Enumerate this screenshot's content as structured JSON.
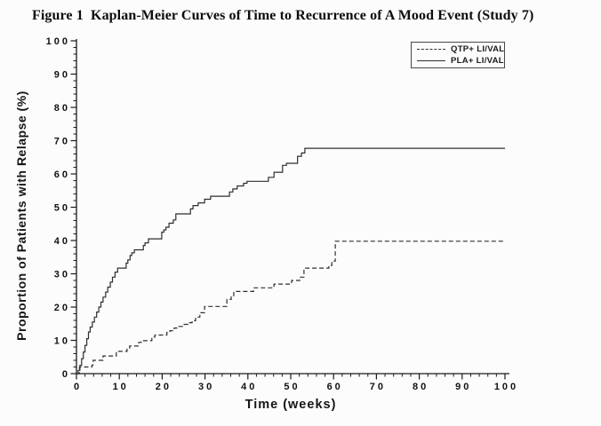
{
  "figure": {
    "title": "Figure 1  Kaplan-Meier Curves of Time to Recurrence of A Mood Event (Study 7)"
  },
  "colors": {
    "background": "#fcfcfc",
    "axis": "#1a1a1a",
    "tick_text": "#111111",
    "curve": "#2e2e2e"
  },
  "chart_data": {
    "type": "line",
    "subtype": "kaplan-meier-step",
    "title": "Figure 1  Kaplan-Meier Curves of Time to Recurrence of A Mood Event (Study 7)",
    "xlabel": "Time (weeks)",
    "ylabel": "Proportion of Patients with Relapse (%)",
    "xlim": [
      0,
      100
    ],
    "ylim": [
      0,
      100
    ],
    "x_major_ticks": [
      0,
      10,
      20,
      30,
      40,
      50,
      60,
      70,
      80,
      90,
      100
    ],
    "y_major_ticks": [
      0,
      10,
      20,
      30,
      40,
      50,
      60,
      70,
      80,
      90,
      100
    ],
    "minor_tick_interval": 2,
    "grid": false,
    "legend_position": "top-right",
    "series": [
      {
        "name": "QTP+ LI/VAL",
        "line_style": "dashed",
        "color": "#2e2e2e",
        "final_value_pct": 40,
        "plateau_start_week": 60.4,
        "points": [
          [
            0,
            0
          ],
          [
            0.7,
            2
          ],
          [
            3.6,
            2.6
          ],
          [
            3.9,
            4
          ],
          [
            6.2,
            5.3
          ],
          [
            9.3,
            6.7
          ],
          [
            11.8,
            7.5
          ],
          [
            12.4,
            8.3
          ],
          [
            14.5,
            9.4
          ],
          [
            15.1,
            9.9
          ],
          [
            17.6,
            11
          ],
          [
            18.3,
            11.6
          ],
          [
            21.1,
            12.4
          ],
          [
            21.8,
            12.9
          ],
          [
            22.8,
            13.7
          ],
          [
            23.9,
            14.2
          ],
          [
            24.9,
            14.8
          ],
          [
            26,
            15.3
          ],
          [
            27,
            15.9
          ],
          [
            27.8,
            17
          ],
          [
            28.8,
            18.3
          ],
          [
            29.9,
            20.2
          ],
          [
            35.1,
            22.3
          ],
          [
            36.1,
            23.2
          ],
          [
            36.7,
            24.7
          ],
          [
            41.3,
            25.8
          ],
          [
            46.1,
            26.9
          ],
          [
            50.2,
            28
          ],
          [
            52.1,
            29
          ],
          [
            53.1,
            31.7
          ],
          [
            58.9,
            32.5
          ],
          [
            59.6,
            33.8
          ],
          [
            60.4,
            39.8
          ],
          [
            100,
            39.8
          ]
        ]
      },
      {
        "name": "PLA+ LI/VAL",
        "line_style": "solid",
        "color": "#2e2e2e",
        "final_value_pct": 68,
        "plateau_start_week": 53.3,
        "points": [
          [
            0,
            0
          ],
          [
            0.4,
            1
          ],
          [
            0.8,
            2.5
          ],
          [
            1.2,
            4.5
          ],
          [
            1.6,
            6.5
          ],
          [
            2,
            8.5
          ],
          [
            2.4,
            10.5
          ],
          [
            2.8,
            12.5
          ],
          [
            3.2,
            14
          ],
          [
            3.7,
            15.5
          ],
          [
            4.2,
            17
          ],
          [
            4.7,
            18.5
          ],
          [
            5.2,
            20
          ],
          [
            5.7,
            21.5
          ],
          [
            6.2,
            23
          ],
          [
            6.8,
            24.5
          ],
          [
            7.3,
            26
          ],
          [
            7.9,
            27.5
          ],
          [
            8.4,
            29
          ],
          [
            9,
            30.5
          ],
          [
            9.6,
            31.7
          ],
          [
            11.6,
            33.2
          ],
          [
            12,
            34.2
          ],
          [
            12.5,
            35.5
          ],
          [
            12.9,
            36.3
          ],
          [
            13.5,
            37.2
          ],
          [
            15.6,
            38.5
          ],
          [
            16,
            39.3
          ],
          [
            16.8,
            40.5
          ],
          [
            19.9,
            42.5
          ],
          [
            20.4,
            43.2
          ],
          [
            20.9,
            44
          ],
          [
            21.6,
            45.2
          ],
          [
            22.6,
            46.2
          ],
          [
            23.2,
            48
          ],
          [
            26.6,
            49.5
          ],
          [
            27.2,
            50.5
          ],
          [
            28.4,
            51.3
          ],
          [
            29.9,
            52.4
          ],
          [
            31.3,
            53.3
          ],
          [
            35.7,
            54.6
          ],
          [
            36.5,
            55.5
          ],
          [
            37.5,
            56.4
          ],
          [
            39,
            57.2
          ],
          [
            39.8,
            57.8
          ],
          [
            44.8,
            59
          ],
          [
            46.1,
            60.5
          ],
          [
            48.1,
            62.6
          ],
          [
            49,
            63.2
          ],
          [
            51.6,
            65.3
          ],
          [
            52.5,
            66.3
          ],
          [
            53.3,
            67.7
          ],
          [
            100,
            67.7
          ]
        ]
      }
    ]
  }
}
